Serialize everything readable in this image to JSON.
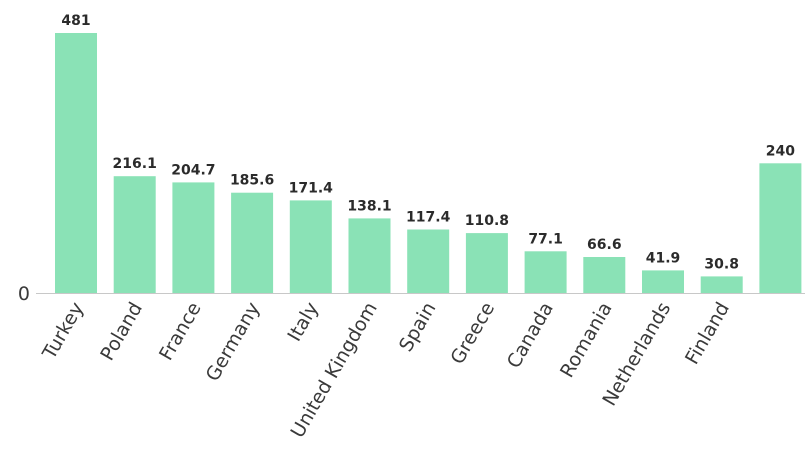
{
  "chart_data": {
    "type": "bar",
    "categories": [
      "Turkey",
      "Poland",
      "France",
      "Germany",
      "Italy",
      "United Kingdom",
      "Spain",
      "Greece",
      "Canada",
      "Romania",
      "Netherlands",
      "Finland",
      ""
    ],
    "values": [
      481,
      216.1,
      204.7,
      185.6,
      171.4,
      138.1,
      117.4,
      110.8,
      77.1,
      66.6,
      41.9,
      30.8,
      240
    ],
    "value_labels": [
      "481",
      "216.1",
      "204.7",
      "185.6",
      "171.4",
      "138.1",
      "117.4",
      "110.8",
      "77.1",
      "66.6",
      "41.9",
      "30.8",
      "240"
    ],
    "y_ticks": [
      "0"
    ],
    "ylim": [
      0,
      481
    ],
    "grid": false,
    "bar_color": "#8ae2b6",
    "axis_color": "#c8c8c8"
  }
}
